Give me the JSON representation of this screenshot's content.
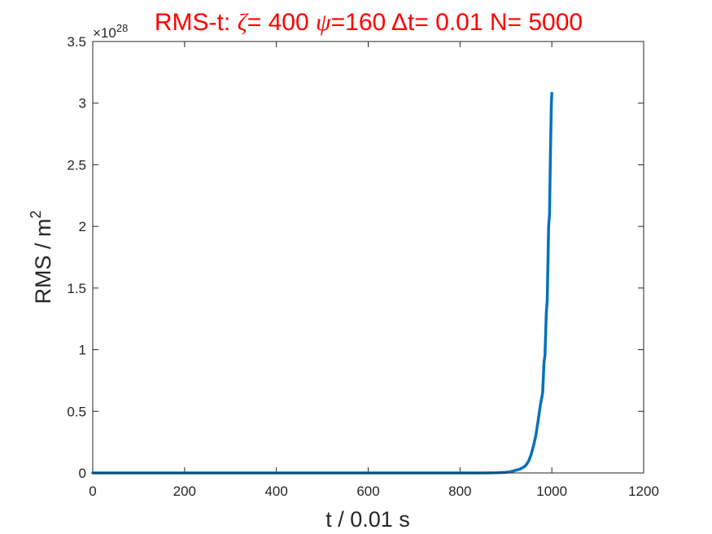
{
  "chart_data": {
    "type": "line",
    "title": {
      "prefix": "RMS-t:  ",
      "zeta_symbol": "ζ",
      "zeta_text": "= 400 ",
      "psi_symbol": "ψ",
      "psi_text": "=160 ",
      "delta_symbol": "Δ",
      "rest": "t= 0.01 N= 5000"
    },
    "xlabel": "t / 0.01 s",
    "ylabel": {
      "base": "RMS / m",
      "superscript": "2"
    },
    "y_exponent": {
      "prefix": "×10",
      "power": "28"
    },
    "xlim": [
      0,
      1200
    ],
    "ylim": [
      0,
      3.5
    ],
    "x_ticks": [
      "0",
      "200",
      "400",
      "600",
      "800",
      "1000",
      "1200"
    ],
    "y_ticks": [
      "0",
      "0.5",
      "1",
      "1.5",
      "2",
      "2.5",
      "3",
      "3.5"
    ],
    "grid": false,
    "series": [
      {
        "color": "#0072BD",
        "x": [
          0,
          100,
          200,
          300,
          400,
          500,
          600,
          700,
          800,
          850,
          880,
          900,
          910,
          920,
          930,
          940,
          945,
          950,
          955,
          960,
          965,
          970,
          975,
          980,
          983,
          985,
          988,
          990,
          993,
          995,
          997,
          998,
          999,
          1000
        ],
        "y": [
          0,
          0,
          0,
          0,
          0,
          0,
          0,
          0,
          0,
          0,
          0.002,
          0.005,
          0.01,
          0.02,
          0.03,
          0.05,
          0.07,
          0.1,
          0.15,
          0.22,
          0.3,
          0.42,
          0.55,
          0.65,
          0.9,
          0.95,
          1.3,
          1.4,
          2.0,
          2.1,
          2.6,
          2.8,
          3.0,
          3.08
        ]
      }
    ]
  }
}
